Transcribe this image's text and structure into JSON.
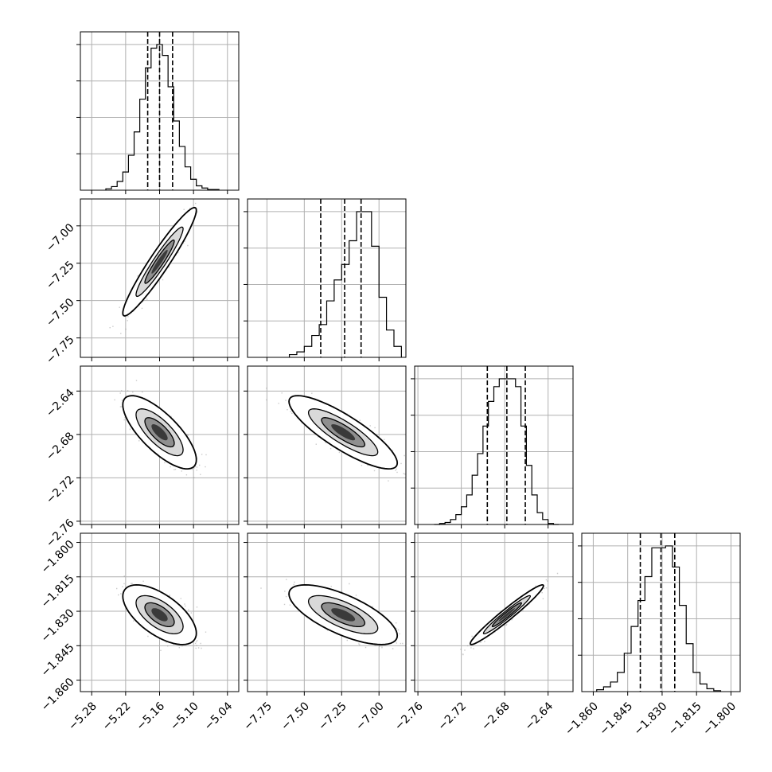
{
  "chart_data": {
    "type": "corner",
    "colors": {
      "ink": "#000000",
      "grid": "#b0b0b0",
      "points": "#8c8c8c"
    },
    "grid": true,
    "parameters": [
      {
        "ticks": [
          -5.28,
          -5.22,
          -5.16,
          -5.1,
          -5.04
        ],
        "tick_labels": [
          "−5.28",
          "−5.22",
          "−5.16",
          "−5.10",
          "−5.04"
        ],
        "range": [
          -5.3,
          -5.02
        ]
      },
      {
        "ticks": [
          -7.75,
          -7.5,
          -7.25,
          -7.0
        ],
        "tick_labels": [
          "−7.75",
          "−7.50",
          "−7.25",
          "−7.00"
        ],
        "range": [
          -7.88,
          -6.82
        ]
      },
      {
        "ticks": [
          -2.76,
          -2.72,
          -2.68,
          -2.64
        ],
        "tick_labels": [
          "−2.76",
          "−2.72",
          "−2.68",
          "−2.64"
        ],
        "range": [
          -2.763,
          -2.617
        ]
      },
      {
        "ticks": [
          -1.86,
          -1.845,
          -1.83,
          -1.815,
          -1.8
        ],
        "tick_labels": [
          "−1.860",
          "−1.845",
          "−1.830",
          "−1.815",
          "−1.800"
        ],
        "range": [
          -1.865,
          -1.796
        ]
      }
    ],
    "histograms": [
      {
        "param": 0,
        "quantiles": [
          -5.181,
          -5.16,
          -5.137
        ],
        "edges": [
          -5.255,
          -5.245,
          -5.235,
          -5.225,
          -5.215,
          -5.205,
          -5.195,
          -5.185,
          -5.175,
          -5.165,
          -5.155,
          -5.145,
          -5.135,
          -5.125,
          -5.115,
          -5.105,
          -5.095,
          -5.085,
          -5.075,
          -5.065,
          -5.055
        ],
        "counts": [
          2,
          5,
          12,
          25,
          48,
          80,
          125,
          168,
          195,
          200,
          185,
          142,
          95,
          60,
          32,
          15,
          6,
          3,
          1,
          1
        ]
      },
      {
        "param": 1,
        "quantiles": [
          -7.39,
          -7.23,
          -7.12
        ],
        "edges": [
          -7.6,
          -7.55,
          -7.5,
          -7.45,
          -7.4,
          -7.35,
          -7.3,
          -7.25,
          -7.2,
          -7.15,
          -7.1,
          -7.05,
          -7.0,
          -6.95,
          -6.9,
          -6.85
        ],
        "counts": [
          3,
          6,
          12,
          24,
          36,
          62,
          85,
          102,
          128,
          160,
          160,
          122,
          66,
          30,
          12
        ],
        "note_edges_continue": true
      },
      {
        "param": 2,
        "quantiles": [
          -2.696,
          -2.678,
          -2.661
        ],
        "edges": [
          -2.745,
          -2.74,
          -2.735,
          -2.73,
          -2.725,
          -2.72,
          -2.715,
          -2.71,
          -2.705,
          -2.7,
          -2.695,
          -2.69,
          -2.685,
          -2.68,
          -2.675,
          -2.67,
          -2.665,
          -2.66,
          -2.655,
          -2.65,
          -2.645,
          -2.64,
          -2.635,
          -2.63
        ],
        "counts": [
          0,
          1,
          2,
          5,
          10,
          18,
          30,
          50,
          72,
          100,
          125,
          140,
          148,
          148,
          148,
          140,
          100,
          60,
          30,
          12,
          5,
          1,
          0
        ]
      },
      {
        "param": 3,
        "quantiles": [
          -1.8395,
          -1.8305,
          -1.8245
        ],
        "edges": [
          -1.8585,
          -1.8555,
          -1.8525,
          -1.8495,
          -1.8465,
          -1.8435,
          -1.8405,
          -1.8375,
          -1.8345,
          -1.8315,
          -1.8285,
          -1.8255,
          -1.8225,
          -1.8195,
          -1.8165,
          -1.8135,
          -1.8105,
          -1.8075,
          -1.8045
        ],
        "counts": [
          2,
          5,
          10,
          20,
          40,
          68,
          95,
          120,
          150,
          150,
          152,
          130,
          90,
          50,
          20,
          8,
          3,
          1
        ]
      }
    ],
    "joints": [
      {
        "row": 1,
        "col": 0,
        "mean": [
          -5.16,
          -7.24
        ],
        "sd": [
          0.026,
          0.145
        ],
        "rho": 0.95
      },
      {
        "row": 2,
        "col": 0,
        "mean": [
          -5.16,
          -2.678
        ],
        "sd": [
          0.026,
          0.0135
        ],
        "rho": -0.75
      },
      {
        "row": 2,
        "col": 1,
        "mean": [
          -7.24,
          -2.678
        ],
        "sd": [
          0.145,
          0.0135
        ],
        "rho": -0.84
      },
      {
        "row": 3,
        "col": 0,
        "mean": [
          -5.16,
          -1.8315
        ],
        "sd": [
          0.026,
          0.0052
        ],
        "rho": -0.62
      },
      {
        "row": 3,
        "col": 1,
        "mean": [
          -7.24,
          -1.8315
        ],
        "sd": [
          0.145,
          0.0052
        ],
        "rho": -0.7
      },
      {
        "row": 3,
        "col": 2,
        "mean": [
          -2.678,
          -1.8315
        ],
        "sd": [
          0.0135,
          0.0052
        ],
        "rho": 0.97
      }
    ]
  }
}
